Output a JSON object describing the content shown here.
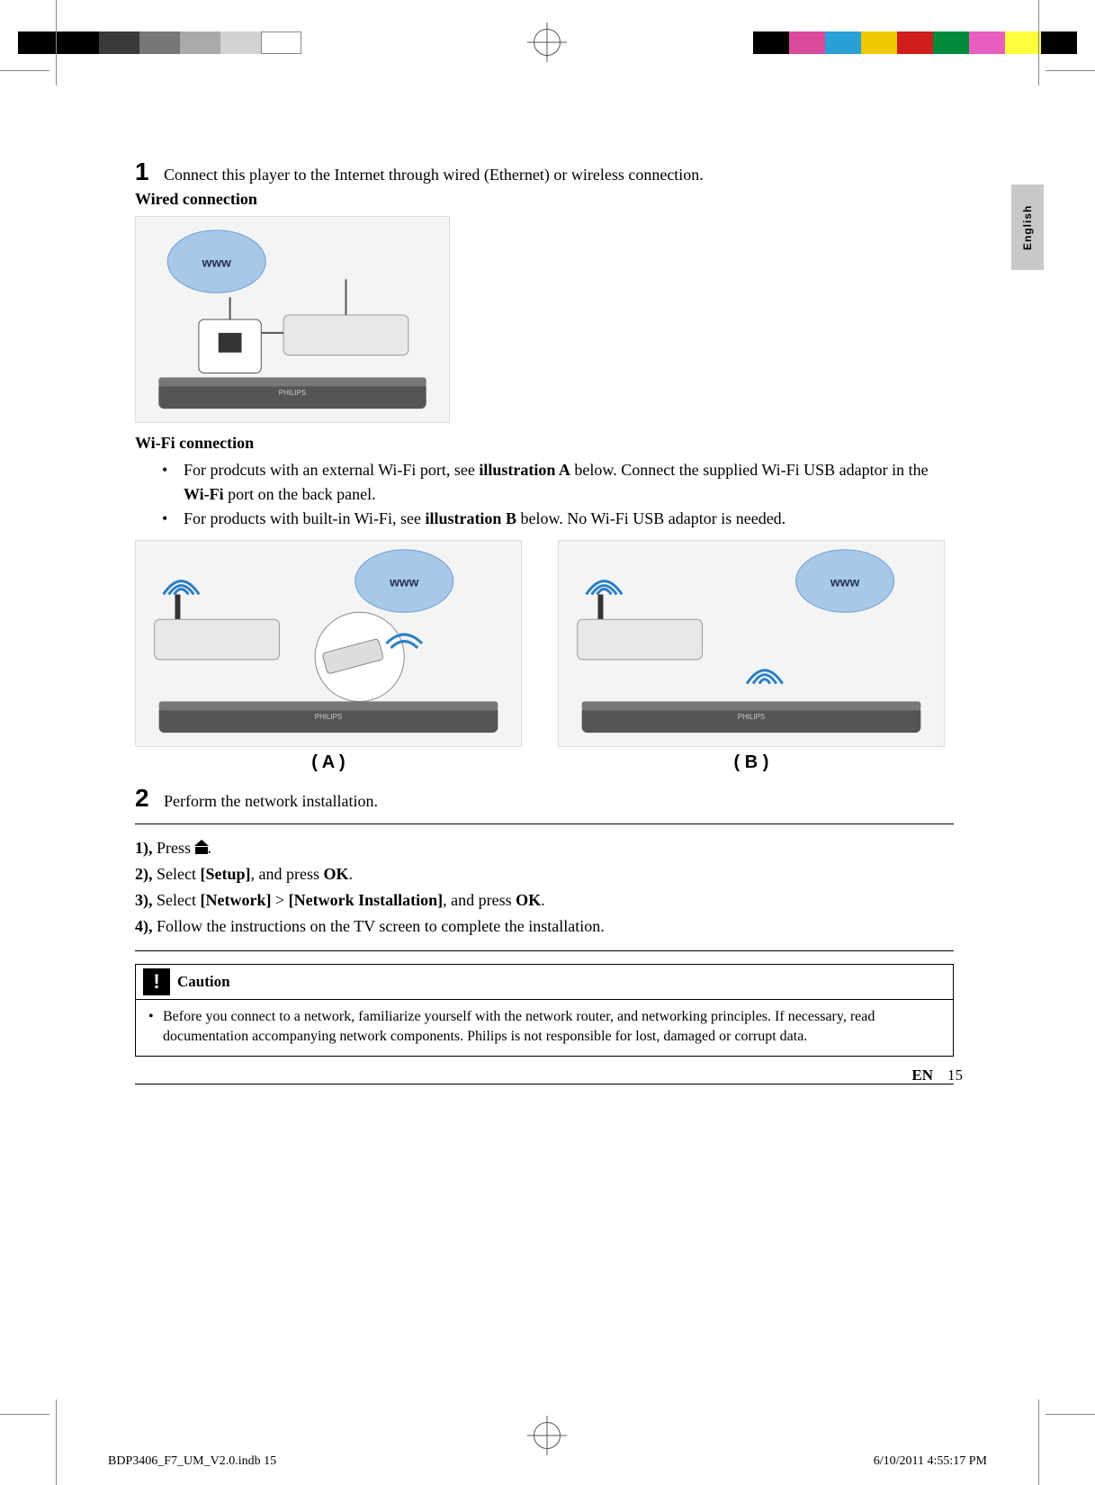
{
  "registration": {
    "left_swatches": [
      "#000000",
      "#000000",
      "#3a3a3a",
      "#777777",
      "#aaaaaa",
      "#d2d2d2",
      "#ffffff"
    ],
    "right_swatches": [
      "#000000",
      "#d94b9a",
      "#2aa0d8",
      "#f0c800",
      "#d11d1d",
      "#008a3a",
      "#e85fc0",
      "#ffff3d",
      "#000000"
    ]
  },
  "lang_tab": "English",
  "step1": {
    "num": "1",
    "text": "Connect this player to the Internet through wired (Ethernet) or wireless connection.",
    "wired_label": "Wired connection",
    "wifi_label": "Wi-Fi connection",
    "bullet_a_1": "For prodcuts with an external Wi-Fi port, see ",
    "bullet_a_bold1": "illustration A",
    "bullet_a_2": " below. Connect the supplied Wi-Fi USB adaptor in the ",
    "bullet_a_bold2": "Wi-Fi",
    "bullet_a_3": " port on the back panel.",
    "bullet_b_1": "For products with built-in Wi-Fi, see ",
    "bullet_b_bold": "illustration B",
    "bullet_b_2": " below. No Wi-Fi USB adaptor is needed.",
    "label_a": "( A )",
    "label_b": "( B )"
  },
  "step2": {
    "num": "2",
    "text": "Perform the network installation."
  },
  "substeps": {
    "s1_n": "1),",
    "s1_pre": " Press ",
    "s1_post": ".",
    "s2_n": "2),",
    "s2_t1": " Select ",
    "s2_b1": "[Setup]",
    "s2_t2": ", and press ",
    "s2_b2": "OK",
    "s2_t3": ".",
    "s3_n": "3),",
    "s3_t1": " Select ",
    "s3_b1": "[Network]",
    "s3_gt": " > ",
    "s3_b2": "[Network Installation]",
    "s3_t2": ", and press ",
    "s3_b3": "OK",
    "s3_t3": ".",
    "s4_n": "4),",
    "s4_t": " Follow the instructions on the TV screen to complete the installation."
  },
  "caution": {
    "title": "Caution",
    "body": "Before you connect to a network, familiarize yourself with the network router, and networking principles. If necessary, read documentation accompanying network components. Philips is not responsible for lost, damaged or corrupt data."
  },
  "footer": {
    "lang": "EN",
    "page": "15",
    "file": "BDP3406_F7_UM_V2.0.indb   15",
    "date": "6/10/2011   4:55:17 PM"
  },
  "colors": {
    "text": "#000000",
    "bg": "#ffffff",
    "tab_bg": "#c8c8c8",
    "rule": "#000000"
  }
}
